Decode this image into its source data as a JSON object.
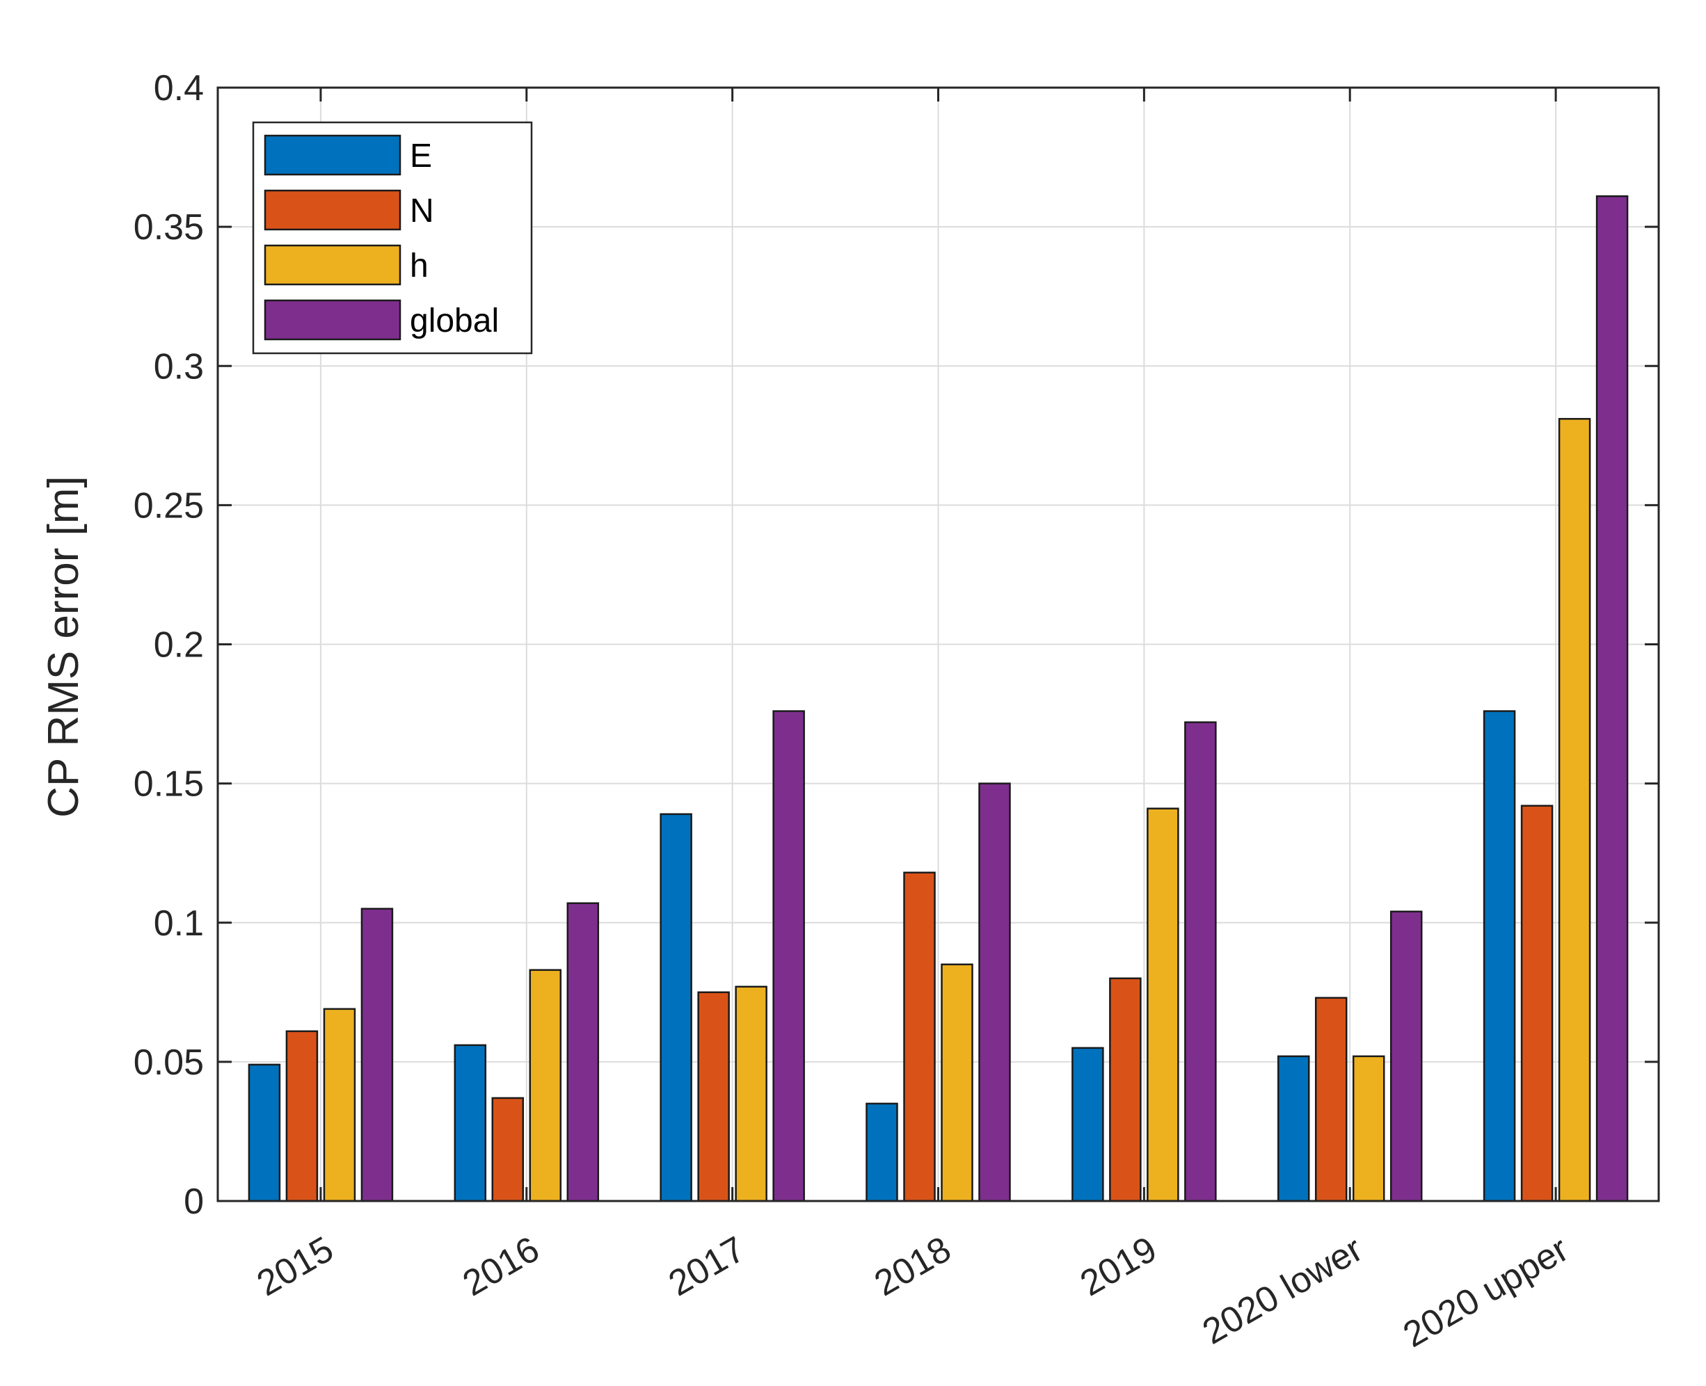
{
  "chart_data": {
    "type": "bar",
    "title": "",
    "xlabel": "",
    "ylabel": "CP RMS error [m]",
    "ylim": [
      0,
      0.4
    ],
    "yticks": [
      0,
      0.05,
      0.1,
      0.15,
      0.2,
      0.25,
      0.3,
      0.35,
      0.4
    ],
    "ytick_labels": [
      "0",
      "0.05",
      "0.1",
      "0.15",
      "0.2",
      "0.25",
      "0.3",
      "0.35",
      "0.4"
    ],
    "categories": [
      "2015",
      "2016",
      "2017",
      "2018",
      "2019",
      "2020 lower",
      "2020 upper"
    ],
    "grid": true,
    "legend_position": "top-left",
    "series": [
      {
        "name": "E",
        "color": "#0072BD",
        "values": [
          0.049,
          0.056,
          0.139,
          0.035,
          0.055,
          0.052,
          0.176
        ]
      },
      {
        "name": "N",
        "color": "#D95319",
        "values": [
          0.061,
          0.037,
          0.075,
          0.118,
          0.08,
          0.073,
          0.142
        ]
      },
      {
        "name": "h",
        "color": "#EDB120",
        "values": [
          0.069,
          0.083,
          0.077,
          0.085,
          0.141,
          0.052,
          0.281
        ]
      },
      {
        "name": "global",
        "color": "#7E2F8E",
        "values": [
          0.105,
          0.107,
          0.176,
          0.15,
          0.172,
          0.104,
          0.361
        ]
      }
    ]
  }
}
